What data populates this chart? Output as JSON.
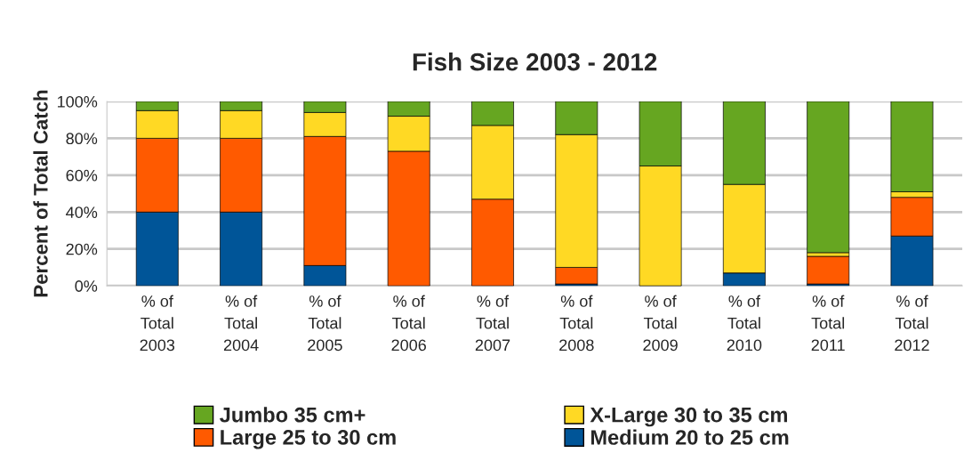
{
  "chart_data": {
    "type": "bar",
    "title": "Fish Size 2003 - 2012",
    "ylabel": "Percent of Total Catch",
    "categories": [
      "% of\nTotal\n2003",
      "% of\nTotal\n2004",
      "% of\nTotal\n2005",
      "% of\nTotal\n2006",
      "% of\nTotal\n2007",
      "% of\nTotal\n2008",
      "% of\nTotal\n2009",
      "% of\nTotal\n2010",
      "% of\nTotal\n2011",
      "% of\nTotal\n2012"
    ],
    "stacked": true,
    "series": [
      {
        "name": "Medium 20 to 25 cm",
        "color": "#005598",
        "values": [
          40,
          40,
          11,
          0,
          0,
          1,
          0,
          7,
          1,
          27
        ]
      },
      {
        "name": "Large 25 to 30 cm",
        "color": "#ff5a00",
        "values": [
          40,
          40,
          70,
          73,
          47,
          9,
          0,
          0,
          15,
          21
        ]
      },
      {
        "name": "X-Large 30 to 35 cm",
        "color": "#ffd924",
        "values": [
          15,
          15,
          13,
          19,
          40,
          72,
          65,
          48,
          2,
          3
        ]
      },
      {
        "name": "Jumbo 35 cm+",
        "color": "#66a621",
        "values": [
          5,
          5,
          6,
          8,
          13,
          18,
          35,
          45,
          82,
          49
        ]
      }
    ],
    "ylim": [
      0,
      100
    ],
    "yticks": [
      {
        "value": 0,
        "label": "0%"
      },
      {
        "value": 20,
        "label": "20%"
      },
      {
        "value": 40,
        "label": "40%"
      },
      {
        "value": 60,
        "label": "60%"
      },
      {
        "value": 80,
        "label": "80%"
      },
      {
        "value": 100,
        "label": "100%"
      }
    ],
    "grid": "y",
    "legend": "bottom"
  }
}
